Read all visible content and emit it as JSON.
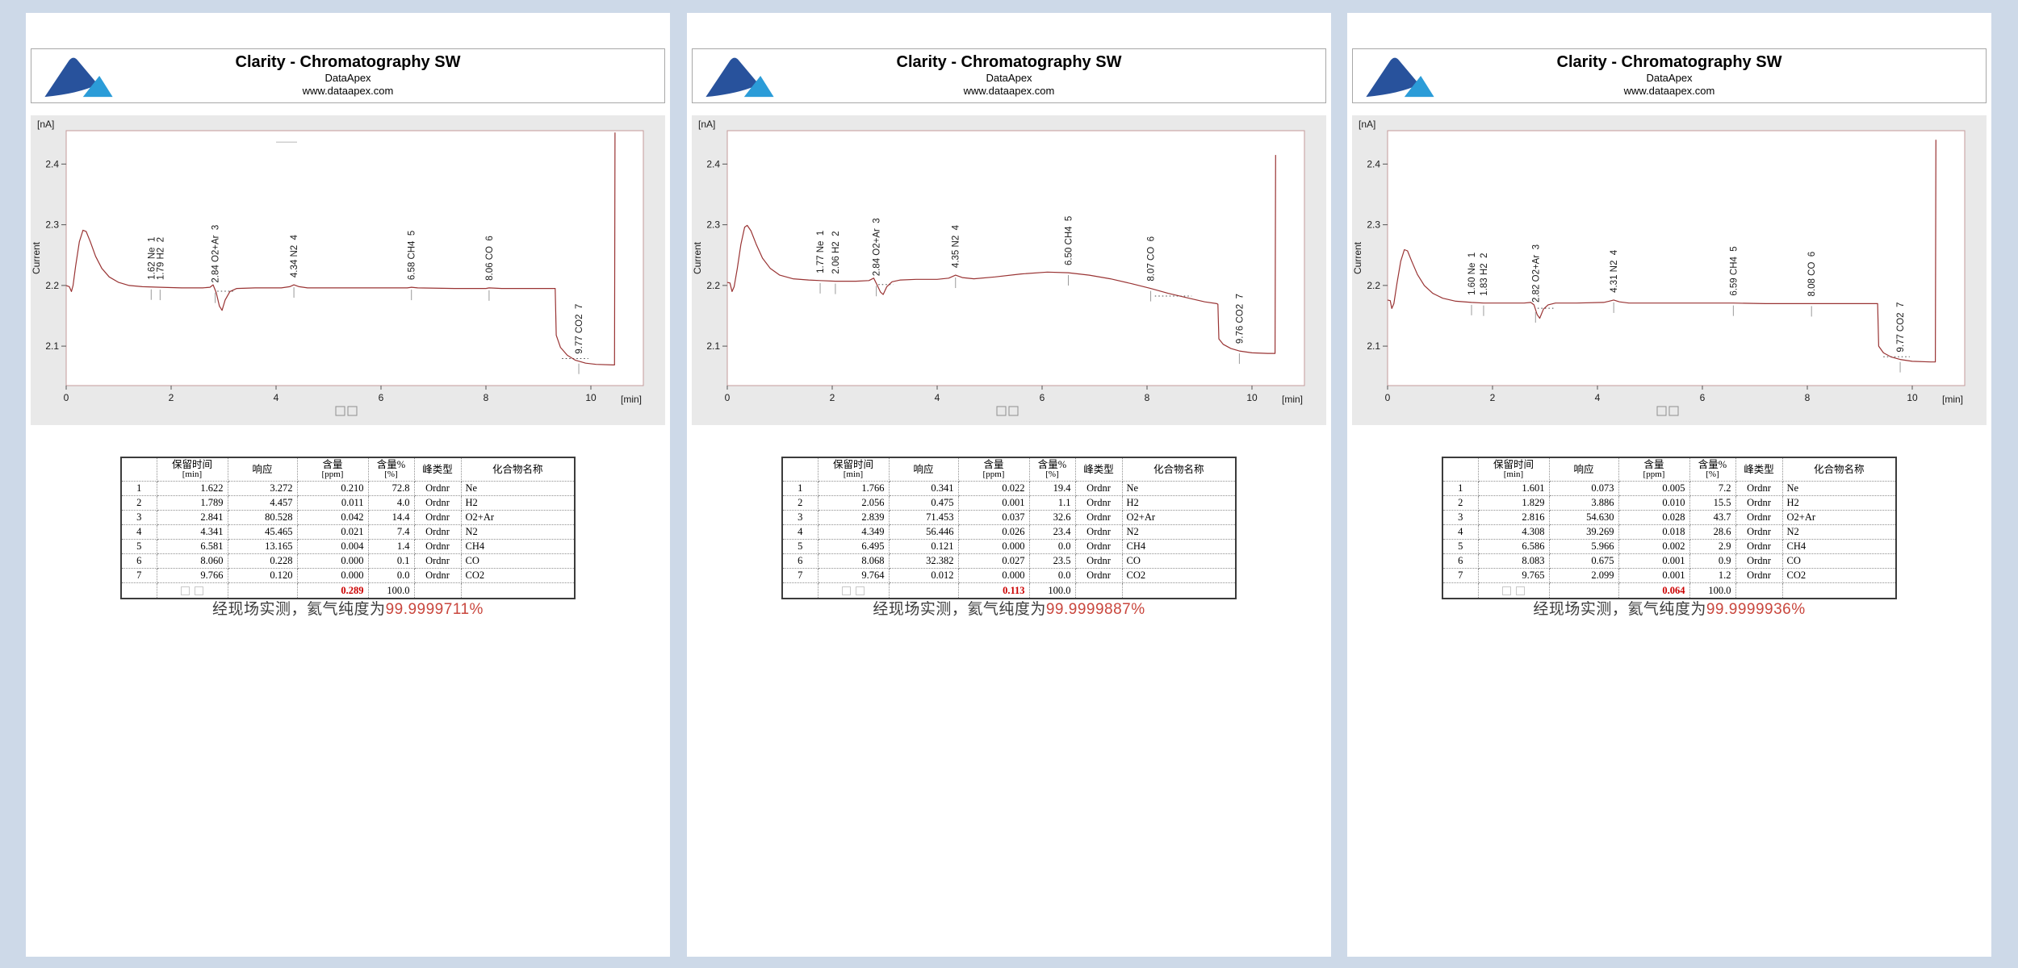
{
  "report": {
    "title": "Clarity - Chromatography SW",
    "vendor": "DataApex",
    "website": "www.dataapex.com",
    "missing_glyph": "□",
    "colors": {
      "page_background": "#cdd9e8",
      "chart_background": "#e9e9e9",
      "trace": "#993333",
      "plot_border": "#c49a9a",
      "total_value": "#cc0000",
      "purity_value": "#c9463d",
      "logo_dark_blue": "#28529c",
      "logo_light_blue": "#2b9cd8"
    },
    "table_headers": [
      {
        "t": "",
        "u": ""
      },
      {
        "t": "保留时间",
        "u": "[min]"
      },
      {
        "t": "响应",
        "u": ""
      },
      {
        "t": "含量",
        "u": "[ppm]"
      },
      {
        "t": "含量%",
        "u": "[%]"
      },
      {
        "t": "峰类型",
        "u": ""
      },
      {
        "t": "化合物名称",
        "u": ""
      }
    ]
  },
  "chart_data": [
    {
      "type": "line",
      "ylabel": "Current",
      "y_unit": "[nA]",
      "x_unit": "[min]",
      "xlim": [
        0,
        11
      ],
      "ylim": [
        2.035,
        2.455
      ],
      "xticks": [
        0,
        2,
        4,
        6,
        8,
        10
      ],
      "yticks": [
        2.4,
        2.3,
        2.2,
        2.1
      ],
      "line_color": "#993333",
      "peaks": [
        {
          "rt": "1.62",
          "name": "Ne",
          "num": 1,
          "t": 1.62
        },
        {
          "rt": "1.79",
          "name": "H2",
          "num": 2,
          "t": 1.79
        },
        {
          "rt": "2.84",
          "name": "O2+Ar",
          "num": 3,
          "t": 2.84
        },
        {
          "rt": "4.34",
          "name": "N2",
          "num": 4,
          "t": 4.34
        },
        {
          "rt": "6.58",
          "name": "CH4",
          "num": 5,
          "t": 6.58
        },
        {
          "rt": "8.06",
          "name": "CO",
          "num": 6,
          "t": 8.06
        },
        {
          "rt": "9.77",
          "name": "CO2",
          "num": 7,
          "t": 9.77
        }
      ],
      "top_dash": {
        "t1": 4.0,
        "t2": 4.4,
        "y": 2.436
      },
      "dotted_segments": [
        [
          2.88,
          3.18,
          2.1905
        ],
        [
          9.45,
          9.95,
          2.0795
        ]
      ],
      "trace": [
        [
          0,
          2.2
        ],
        [
          0.06,
          2.198
        ],
        [
          0.1,
          2.19
        ],
        [
          0.13,
          2.2
        ],
        [
          0.18,
          2.232
        ],
        [
          0.25,
          2.272
        ],
        [
          0.32,
          2.291
        ],
        [
          0.38,
          2.289
        ],
        [
          0.46,
          2.272
        ],
        [
          0.56,
          2.248
        ],
        [
          0.68,
          2.228
        ],
        [
          0.82,
          2.214
        ],
        [
          1.0,
          2.205
        ],
        [
          1.2,
          2.2
        ],
        [
          1.45,
          2.198
        ],
        [
          1.8,
          2.197
        ],
        [
          2.2,
          2.196
        ],
        [
          2.6,
          2.196
        ],
        [
          2.74,
          2.197
        ],
        [
          2.8,
          2.201
        ],
        [
          2.86,
          2.188
        ],
        [
          2.92,
          2.166
        ],
        [
          2.97,
          2.159
        ],
        [
          3.03,
          2.176
        ],
        [
          3.12,
          2.19
        ],
        [
          3.25,
          2.195
        ],
        [
          3.6,
          2.196
        ],
        [
          4.1,
          2.196
        ],
        [
          4.26,
          2.198
        ],
        [
          4.34,
          2.201
        ],
        [
          4.44,
          2.198
        ],
        [
          4.6,
          2.196
        ],
        [
          5.2,
          2.196
        ],
        [
          6.0,
          2.196
        ],
        [
          6.5,
          2.196
        ],
        [
          6.58,
          2.197
        ],
        [
          6.7,
          2.196
        ],
        [
          7.4,
          2.195
        ],
        [
          8.0,
          2.195
        ],
        [
          8.06,
          2.196
        ],
        [
          8.3,
          2.195
        ],
        [
          9.0,
          2.195
        ],
        [
          9.32,
          2.195
        ],
        [
          9.34,
          2.118
        ],
        [
          9.42,
          2.098
        ],
        [
          9.55,
          2.085
        ],
        [
          9.7,
          2.077
        ],
        [
          9.9,
          2.072
        ],
        [
          10.1,
          2.07
        ],
        [
          10.42,
          2.069
        ],
        [
          10.45,
          2.069
        ],
        [
          10.46,
          2.452
        ]
      ]
    },
    {
      "type": "line",
      "ylabel": "Current",
      "y_unit": "[nA]",
      "x_unit": "[min]",
      "xlim": [
        0,
        11
      ],
      "ylim": [
        2.035,
        2.455
      ],
      "xticks": [
        0,
        2,
        4,
        6,
        8,
        10
      ],
      "yticks": [
        2.4,
        2.3,
        2.2,
        2.1
      ],
      "line_color": "#993333",
      "peaks": [
        {
          "rt": "1.77",
          "name": "Ne",
          "num": 1,
          "t": 1.77
        },
        {
          "rt": "2.06",
          "name": "H2",
          "num": 2,
          "t": 2.06
        },
        {
          "rt": "2.84",
          "name": "O2+Ar",
          "num": 3,
          "t": 2.84
        },
        {
          "rt": "4.35",
          "name": "N2",
          "num": 4,
          "t": 4.35
        },
        {
          "rt": "6.50",
          "name": "CH4",
          "num": 5,
          "t": 6.5
        },
        {
          "rt": "8.07",
          "name": "CO",
          "num": 6,
          "t": 8.07
        },
        {
          "rt": "9.76",
          "name": "CO2",
          "num": 7,
          "t": 9.76
        }
      ],
      "top_dash": null,
      "dotted_segments": [
        [
          2.88,
          3.16,
          2.2015
        ],
        [
          8.15,
          8.85,
          2.1825
        ]
      ],
      "trace": [
        [
          0,
          2.205
        ],
        [
          0.05,
          2.204
        ],
        [
          0.09,
          2.19
        ],
        [
          0.13,
          2.198
        ],
        [
          0.19,
          2.228
        ],
        [
          0.26,
          2.268
        ],
        [
          0.33,
          2.296
        ],
        [
          0.38,
          2.299
        ],
        [
          0.45,
          2.29
        ],
        [
          0.55,
          2.268
        ],
        [
          0.67,
          2.245
        ],
        [
          0.82,
          2.228
        ],
        [
          1.0,
          2.217
        ],
        [
          1.25,
          2.211
        ],
        [
          1.55,
          2.209
        ],
        [
          1.77,
          2.208
        ],
        [
          2.06,
          2.207
        ],
        [
          2.45,
          2.207
        ],
        [
          2.7,
          2.208
        ],
        [
          2.79,
          2.212
        ],
        [
          2.86,
          2.2
        ],
        [
          2.92,
          2.189
        ],
        [
          2.97,
          2.185
        ],
        [
          3.04,
          2.198
        ],
        [
          3.14,
          2.206
        ],
        [
          3.3,
          2.209
        ],
        [
          3.6,
          2.21
        ],
        [
          4.0,
          2.21
        ],
        [
          4.22,
          2.212
        ],
        [
          4.35,
          2.217
        ],
        [
          4.48,
          2.213
        ],
        [
          4.7,
          2.211
        ],
        [
          5.1,
          2.214
        ],
        [
          5.6,
          2.219
        ],
        [
          6.1,
          2.222
        ],
        [
          6.5,
          2.221
        ],
        [
          6.9,
          2.217
        ],
        [
          7.3,
          2.211
        ],
        [
          7.7,
          2.203
        ],
        [
          8.07,
          2.195
        ],
        [
          8.4,
          2.187
        ],
        [
          8.8,
          2.179
        ],
        [
          9.1,
          2.173
        ],
        [
          9.33,
          2.17
        ],
        [
          9.35,
          2.169
        ],
        [
          9.37,
          2.112
        ],
        [
          9.45,
          2.103
        ],
        [
          9.6,
          2.096
        ],
        [
          9.76,
          2.092
        ],
        [
          10.0,
          2.089
        ],
        [
          10.3,
          2.088
        ],
        [
          10.44,
          2.088
        ],
        [
          10.45,
          2.415
        ]
      ]
    },
    {
      "type": "line",
      "ylabel": "Current",
      "y_unit": "[nA]",
      "x_unit": "[min]",
      "xlim": [
        0,
        11
      ],
      "ylim": [
        2.035,
        2.455
      ],
      "xticks": [
        0,
        2,
        4,
        6,
        8,
        10
      ],
      "yticks": [
        2.4,
        2.3,
        2.2,
        2.1
      ],
      "line_color": "#993333",
      "peaks": [
        {
          "rt": "1.60",
          "name": "Ne",
          "num": 1,
          "t": 1.6
        },
        {
          "rt": "1.83",
          "name": "H2",
          "num": 2,
          "t": 1.83
        },
        {
          "rt": "2.82",
          "name": "O2+Ar",
          "num": 3,
          "t": 2.82
        },
        {
          "rt": "4.31",
          "name": "N2",
          "num": 4,
          "t": 4.31
        },
        {
          "rt": "6.59",
          "name": "CH4",
          "num": 5,
          "t": 6.59
        },
        {
          "rt": "8.08",
          "name": "CO",
          "num": 6,
          "t": 8.08
        },
        {
          "rt": "9.77",
          "name": "CO2",
          "num": 7,
          "t": 9.77
        }
      ],
      "top_dash": null,
      "dotted_segments": [
        [
          2.86,
          3.16,
          2.1625
        ],
        [
          9.45,
          9.95,
          2.0825
        ]
      ],
      "trace": [
        [
          0,
          2.176
        ],
        [
          0.05,
          2.175
        ],
        [
          0.08,
          2.162
        ],
        [
          0.12,
          2.17
        ],
        [
          0.18,
          2.204
        ],
        [
          0.25,
          2.24
        ],
        [
          0.32,
          2.259
        ],
        [
          0.38,
          2.257
        ],
        [
          0.46,
          2.24
        ],
        [
          0.57,
          2.218
        ],
        [
          0.7,
          2.2
        ],
        [
          0.86,
          2.187
        ],
        [
          1.05,
          2.179
        ],
        [
          1.3,
          2.174
        ],
        [
          1.6,
          2.172
        ],
        [
          1.83,
          2.171
        ],
        [
          2.2,
          2.171
        ],
        [
          2.6,
          2.171
        ],
        [
          2.73,
          2.172
        ],
        [
          2.79,
          2.168
        ],
        [
          2.85,
          2.152
        ],
        [
          2.9,
          2.146
        ],
        [
          2.97,
          2.161
        ],
        [
          3.06,
          2.168
        ],
        [
          3.2,
          2.171
        ],
        [
          3.6,
          2.171
        ],
        [
          4.12,
          2.172
        ],
        [
          4.22,
          2.174
        ],
        [
          4.31,
          2.176
        ],
        [
          4.42,
          2.173
        ],
        [
          4.6,
          2.171
        ],
        [
          5.2,
          2.171
        ],
        [
          6.0,
          2.171
        ],
        [
          6.59,
          2.171
        ],
        [
          7.2,
          2.17
        ],
        [
          8.08,
          2.17
        ],
        [
          8.7,
          2.17
        ],
        [
          9.1,
          2.17
        ],
        [
          9.34,
          2.17
        ],
        [
          9.36,
          2.1
        ],
        [
          9.45,
          2.089
        ],
        [
          9.6,
          2.082
        ],
        [
          9.77,
          2.078
        ],
        [
          10.0,
          2.075
        ],
        [
          10.35,
          2.074
        ],
        [
          10.44,
          2.074
        ],
        [
          10.45,
          2.44
        ]
      ]
    }
  ],
  "panels": [
    {
      "purity_prefix": "经现场实测，氦气纯度为",
      "purity_value": "99.9999711%",
      "table": {
        "rows": [
          [
            "1",
            "1.622",
            "3.272",
            "0.210",
            "72.8",
            "Ordnr",
            "Ne"
          ],
          [
            "2",
            "1.789",
            "4.457",
            "0.011",
            "4.0",
            "Ordnr",
            "H2"
          ],
          [
            "3",
            "2.841",
            "80.528",
            "0.042",
            "14.4",
            "Ordnr",
            "O2+Ar"
          ],
          [
            "4",
            "4.341",
            "45.465",
            "0.021",
            "7.4",
            "Ordnr",
            "N2"
          ],
          [
            "5",
            "6.581",
            "13.165",
            "0.004",
            "1.4",
            "Ordnr",
            "CH4"
          ],
          [
            "6",
            "8.060",
            "0.228",
            "0.000",
            "0.1",
            "Ordnr",
            "CO"
          ],
          [
            "7",
            "9.766",
            "0.120",
            "0.000",
            "0.0",
            "Ordnr",
            "CO2"
          ]
        ],
        "total": {
          "amount": "0.289",
          "percent": "100.0"
        }
      }
    },
    {
      "purity_prefix": "经现场实测，氦气纯度为",
      "purity_value": "99.9999887%",
      "table": {
        "rows": [
          [
            "1",
            "1.766",
            "0.341",
            "0.022",
            "19.4",
            "Ordnr",
            "Ne"
          ],
          [
            "2",
            "2.056",
            "0.475",
            "0.001",
            "1.1",
            "Ordnr",
            "H2"
          ],
          [
            "3",
            "2.839",
            "71.453",
            "0.037",
            "32.6",
            "Ordnr",
            "O2+Ar"
          ],
          [
            "4",
            "4.349",
            "56.446",
            "0.026",
            "23.4",
            "Ordnr",
            "N2"
          ],
          [
            "5",
            "6.495",
            "0.121",
            "0.000",
            "0.0",
            "Ordnr",
            "CH4"
          ],
          [
            "6",
            "8.068",
            "32.382",
            "0.027",
            "23.5",
            "Ordnr",
            "CO"
          ],
          [
            "7",
            "9.764",
            "0.012",
            "0.000",
            "0.0",
            "Ordnr",
            "CO2"
          ]
        ],
        "total": {
          "amount": "0.113",
          "percent": "100.0"
        }
      }
    },
    {
      "purity_prefix": "经现场实测，氦气纯度为",
      "purity_value": "99.9999936%",
      "table": {
        "rows": [
          [
            "1",
            "1.601",
            "0.073",
            "0.005",
            "7.2",
            "Ordnr",
            "Ne"
          ],
          [
            "2",
            "1.829",
            "3.886",
            "0.010",
            "15.5",
            "Ordnr",
            "H2"
          ],
          [
            "3",
            "2.816",
            "54.630",
            "0.028",
            "43.7",
            "Ordnr",
            "O2+Ar"
          ],
          [
            "4",
            "4.308",
            "39.269",
            "0.018",
            "28.6",
            "Ordnr",
            "N2"
          ],
          [
            "5",
            "6.586",
            "5.966",
            "0.002",
            "2.9",
            "Ordnr",
            "CH4"
          ],
          [
            "6",
            "8.083",
            "0.675",
            "0.001",
            "0.9",
            "Ordnr",
            "CO"
          ],
          [
            "7",
            "9.765",
            "2.099",
            "0.001",
            "1.2",
            "Ordnr",
            "CO2"
          ]
        ],
        "total": {
          "amount": "0.064",
          "percent": "100.0"
        }
      }
    }
  ]
}
